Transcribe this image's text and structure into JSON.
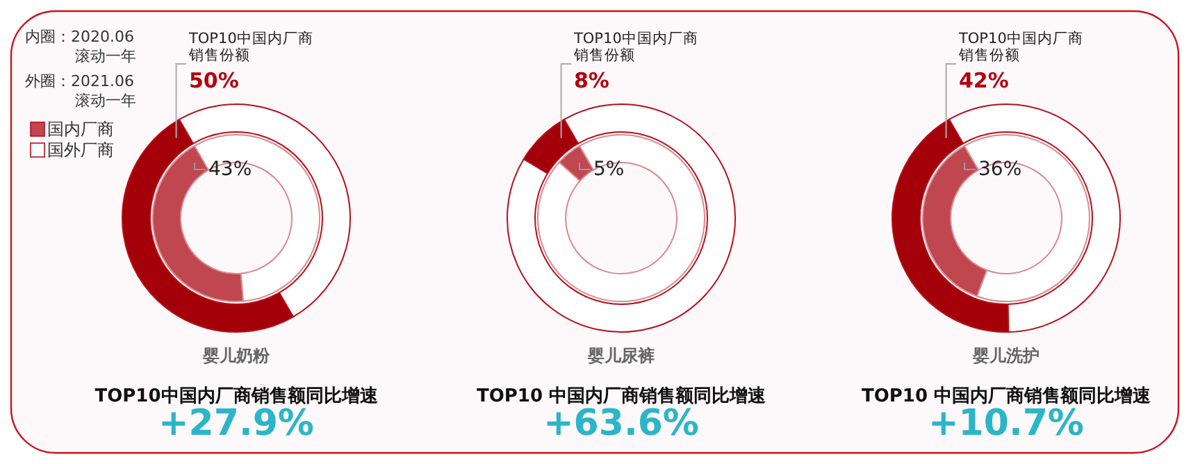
{
  "chart_data": [
    {
      "type": "donut",
      "title": "婴儿奶粉",
      "subtitle": "TOP10中国内厂商销售额同比增速",
      "annotations": [
        "TOP10中国内厂商销售份额",
        "+27.9%",
        "内圈：2020.06 滚动一年",
        "外圈：2021.06 滚动一年"
      ],
      "categories": [
        "国内厂商",
        "国外厂商"
      ],
      "legend": "top left",
      "series": [
        {
          "colors": [
            "#c0474f",
            "#ffffff"
          ],
          "values": [
            43,
            57
          ],
          "value_labels": [
            "43%",
            null
          ]
        },
        {
          "colors": [
            "#a3000a",
            "#ffffff"
          ],
          "values": [
            50,
            50
          ],
          "value_labels": [
            "50%",
            null
          ]
        }
      ]
    },
    {
      "type": "donut",
      "title": "婴儿尿裤",
      "subtitle": "TOP10 中国内厂商销售额同比增速",
      "annotations": [
        "TOP10中国内厂商销售份额",
        "+63.6%"
      ],
      "categories": [
        null,
        null
      ],
      "series": [
        {
          "colors": [
            "#c0474f",
            "#ffffff"
          ],
          "values": [
            5,
            95
          ],
          "value_labels": [
            "5%",
            null
          ]
        },
        {
          "colors": [
            "#a3000a",
            "#ffffff"
          ],
          "values": [
            8,
            92
          ],
          "value_labels": [
            "8%",
            null
          ]
        }
      ]
    },
    {
      "type": "donut",
      "title": "婴儿洗护",
      "subtitle": "TOP10 中国内厂商销售额同比增速",
      "annotations": [
        "TOP10中国内厂商销售份额",
        "+10.7%"
      ],
      "categories": [
        null,
        null
      ],
      "series": [
        {
          "colors": [
            "#c0474f",
            "#ffffff"
          ],
          "values": [
            36,
            64
          ],
          "value_labels": [
            "36%",
            null
          ]
        },
        {
          "colors": [
            "#a3000a",
            "#ffffff"
          ],
          "values": [
            42,
            58
          ],
          "value_labels": [
            "42%",
            null
          ]
        }
      ]
    }
  ]
}
